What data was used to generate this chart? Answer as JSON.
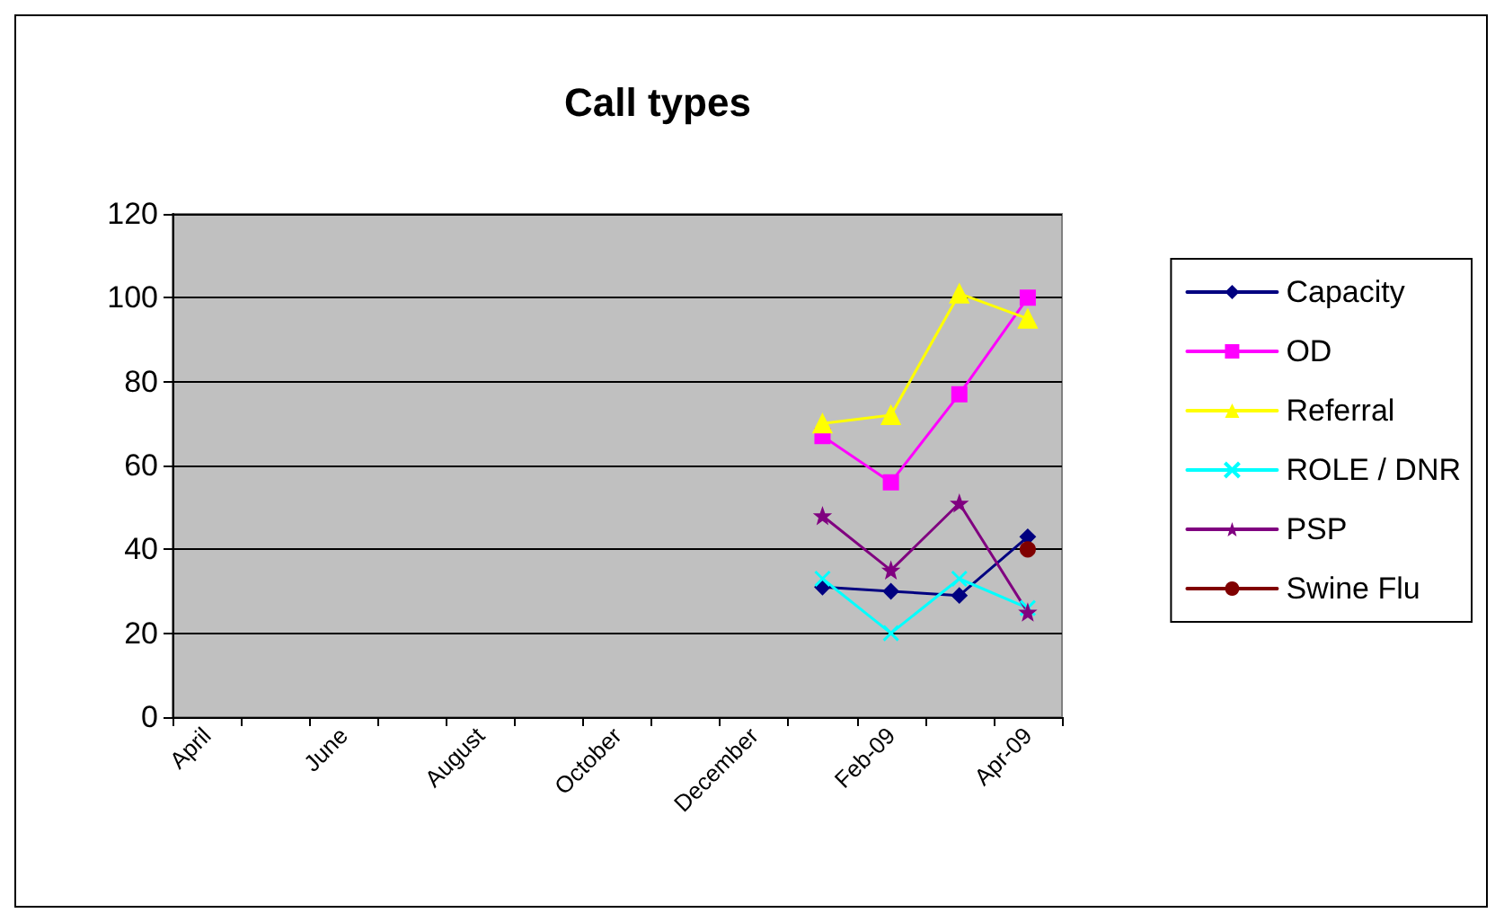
{
  "chart_data": {
    "type": "line",
    "title": "Call types",
    "categories": [
      "April",
      null,
      "June",
      null,
      "August",
      null,
      "October",
      null,
      "December",
      null,
      "Feb-09",
      null,
      "Apr-09"
    ],
    "series": [
      {
        "name": "Capacity",
        "color": "#000080",
        "marker": "diamond",
        "values": [
          null,
          null,
          null,
          null,
          null,
          null,
          null,
          null,
          null,
          31,
          30,
          29,
          43
        ]
      },
      {
        "name": "OD",
        "color": "#ff00ff",
        "marker": "square",
        "values": [
          null,
          null,
          null,
          null,
          null,
          null,
          null,
          null,
          null,
          67,
          56,
          77,
          100
        ]
      },
      {
        "name": "Referral",
        "color": "#ffff00",
        "marker": "triangle",
        "values": [
          null,
          null,
          null,
          null,
          null,
          null,
          null,
          null,
          null,
          70,
          72,
          101,
          95
        ]
      },
      {
        "name": "ROLE / DNR",
        "color": "#00ffff",
        "marker": "cross",
        "values": [
          null,
          null,
          null,
          null,
          null,
          null,
          null,
          null,
          null,
          33,
          20,
          33,
          26
        ]
      },
      {
        "name": "PSP",
        "color": "#800080",
        "marker": "star",
        "values": [
          null,
          null,
          null,
          null,
          null,
          null,
          null,
          null,
          null,
          48,
          35,
          51,
          25
        ]
      },
      {
        "name": "Swine Flu",
        "color": "#800000",
        "marker": "circle",
        "values": [
          null,
          null,
          null,
          null,
          null,
          null,
          null,
          null,
          null,
          null,
          null,
          null,
          40
        ]
      }
    ],
    "ylim": [
      0,
      120
    ],
    "yticks": [
      0,
      20,
      40,
      60,
      80,
      100,
      120
    ],
    "grid": "y",
    "legend": "right",
    "line_style": "solid"
  }
}
